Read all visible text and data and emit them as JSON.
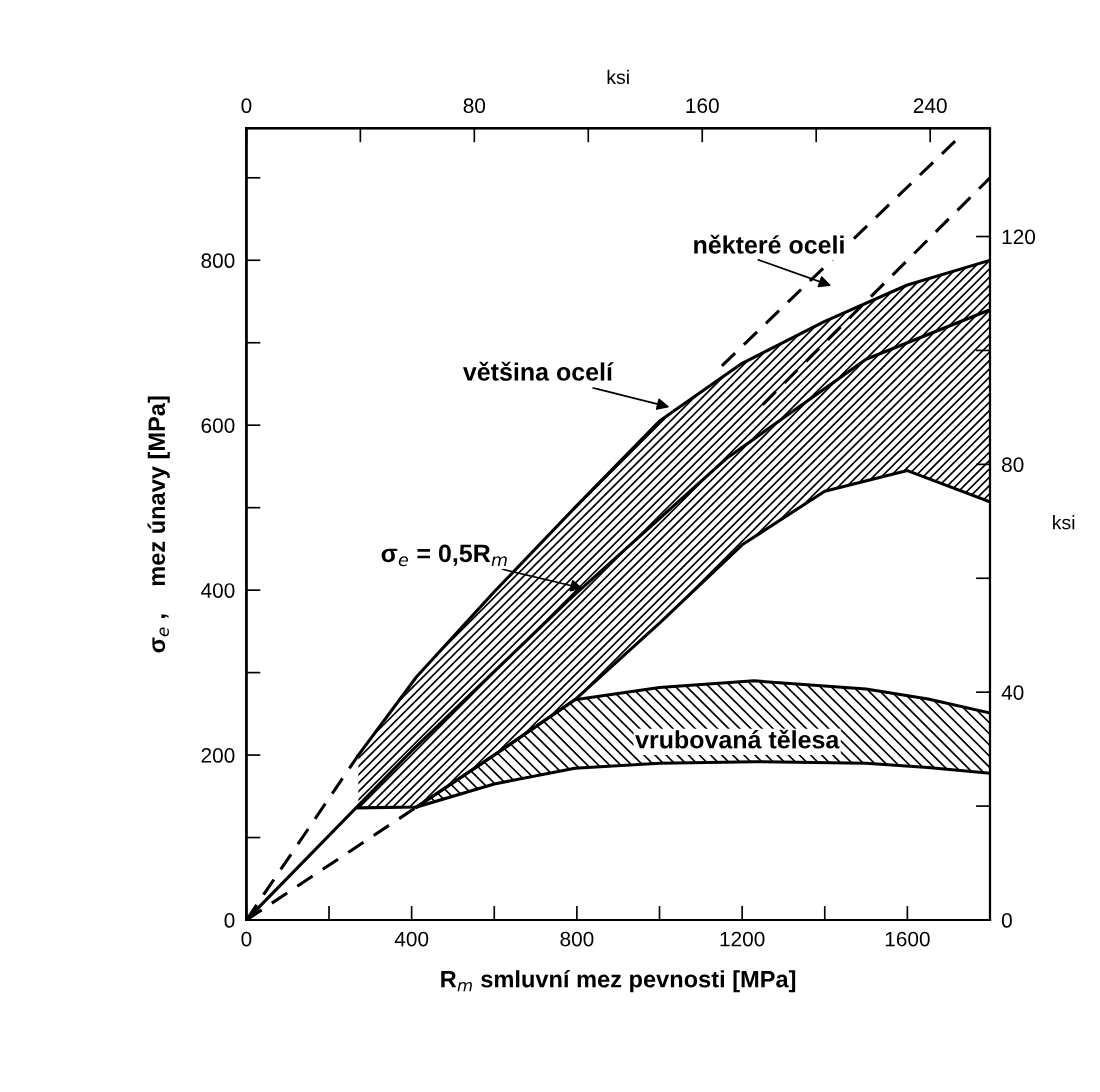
{
  "chart_data": {
    "type": "line",
    "xlabel": "R$_{m}$ smluvní mez pevnosti [MPa]",
    "ylabel": "σ$_{e}$ ,    mez únavy [MPa]",
    "x2label": "ksi",
    "y2label": "ksi",
    "xlim": [
      0,
      1800
    ],
    "ylim": [
      0,
      960
    ],
    "xticks": [
      0,
      {
        "value": 200,
        "label": null
      },
      400,
      {
        "value": 600,
        "label": null
      },
      800,
      {
        "value": 1000,
        "label": null
      },
      1200,
      {
        "value": 1400,
        "label": null
      },
      1600
    ],
    "yticks": [
      0,
      {
        "value": 100,
        "label": null
      },
      200,
      {
        "value": 300,
        "label": null
      },
      400,
      {
        "value": 500,
        "label": null
      },
      600,
      {
        "value": 700,
        "label": null
      },
      800,
      {
        "value": 900,
        "label": null
      }
    ],
    "x2lim": [
      0,
      261
    ],
    "x2ticks": [
      0,
      {
        "value": 40,
        "label": null
      },
      80,
      {
        "value": 120,
        "label": null
      },
      160,
      {
        "value": 200,
        "label": null
      },
      240
    ],
    "y2lim": [
      0,
      139
    ],
    "y2ticks": [
      0,
      {
        "value": 20,
        "label": null
      },
      40,
      {
        "value": 60,
        "label": null
      },
      80,
      {
        "value": 100,
        "label": null
      },
      120
    ],
    "grid": false,
    "marker": "none",
    "series": [
      {
        "color": "#000000",
        "line_style": "solid",
        "x": [
          271,
          412,
          600,
          795,
          1000,
          1200,
          1400,
          1600,
          1800
        ],
        "values": [
          200,
          295,
          398,
          500,
          605,
          675,
          726,
          770,
          800
        ],
        "lower": [
          136,
          137,
          200,
          267,
          360,
          455,
          520,
          545,
          507
        ],
        "upper": [
          200,
          295,
          398,
          500,
          605,
          675,
          726,
          770,
          800
        ]
      },
      {
        "color": "#000000",
        "line_style": "solid",
        "x": [
          271,
          412,
          600,
          795,
          1000,
          1200,
          1400,
          1600,
          1800
        ],
        "values": [
          136,
          137,
          200,
          267,
          360,
          455,
          520,
          545,
          507
        ]
      },
      {
        "color": "#000000",
        "line_style": "solid",
        "x": [
          412,
          600,
          795,
          1000,
          1229,
          1500,
          1650,
          1800
        ],
        "values": [
          137,
          200,
          267,
          282,
          290,
          280,
          268,
          251
        ],
        "lower": [
          137,
          165,
          184,
          190,
          192,
          190,
          185,
          178
        ],
        "upper": [
          137,
          200,
          267,
          282,
          290,
          280,
          268,
          251
        ]
      },
      {
        "color": "#000000",
        "line_style": "solid",
        "x": [
          412,
          600,
          795,
          1000,
          1229,
          1500,
          1650,
          1800
        ],
        "values": [
          137,
          165,
          184,
          190,
          192,
          190,
          185,
          178
        ]
      },
      {
        "color": "#000000",
        "line_style": "solid",
        "x": [
          0,
          400,
          780,
          1163,
          1500,
          1800
        ],
        "values": [
          0,
          205,
          388,
          560,
          680,
          740
        ]
      },
      {
        "color": "#000000",
        "line_style": "dashed",
        "x": [
          0,
          271
        ],
        "values": [
          0,
          200
        ]
      },
      {
        "color": "#000000",
        "line_style": "dashed",
        "x": [
          0,
          412
        ],
        "values": [
          0,
          137
        ]
      },
      {
        "color": "#000000",
        "line_style": "dashed",
        "x": [
          1250,
          1800
        ],
        "values": [
          625,
          900
        ]
      },
      {
        "color": "#000000",
        "line_style": "dashed",
        "x": [
          1151,
          1727
        ],
        "values": [
          672,
          950
        ]
      }
    ],
    "annotations": [
      "některé oceli",
      {
        "text": "většina ocelí",
        "x": 1024,
        "y": 622
      },
      {
        "text": "σ$_{e}$ = 0,5R$_{m}$",
        "x": 815,
        "y": 402
      },
      "vrubovaná tělesa"
    ]
  }
}
